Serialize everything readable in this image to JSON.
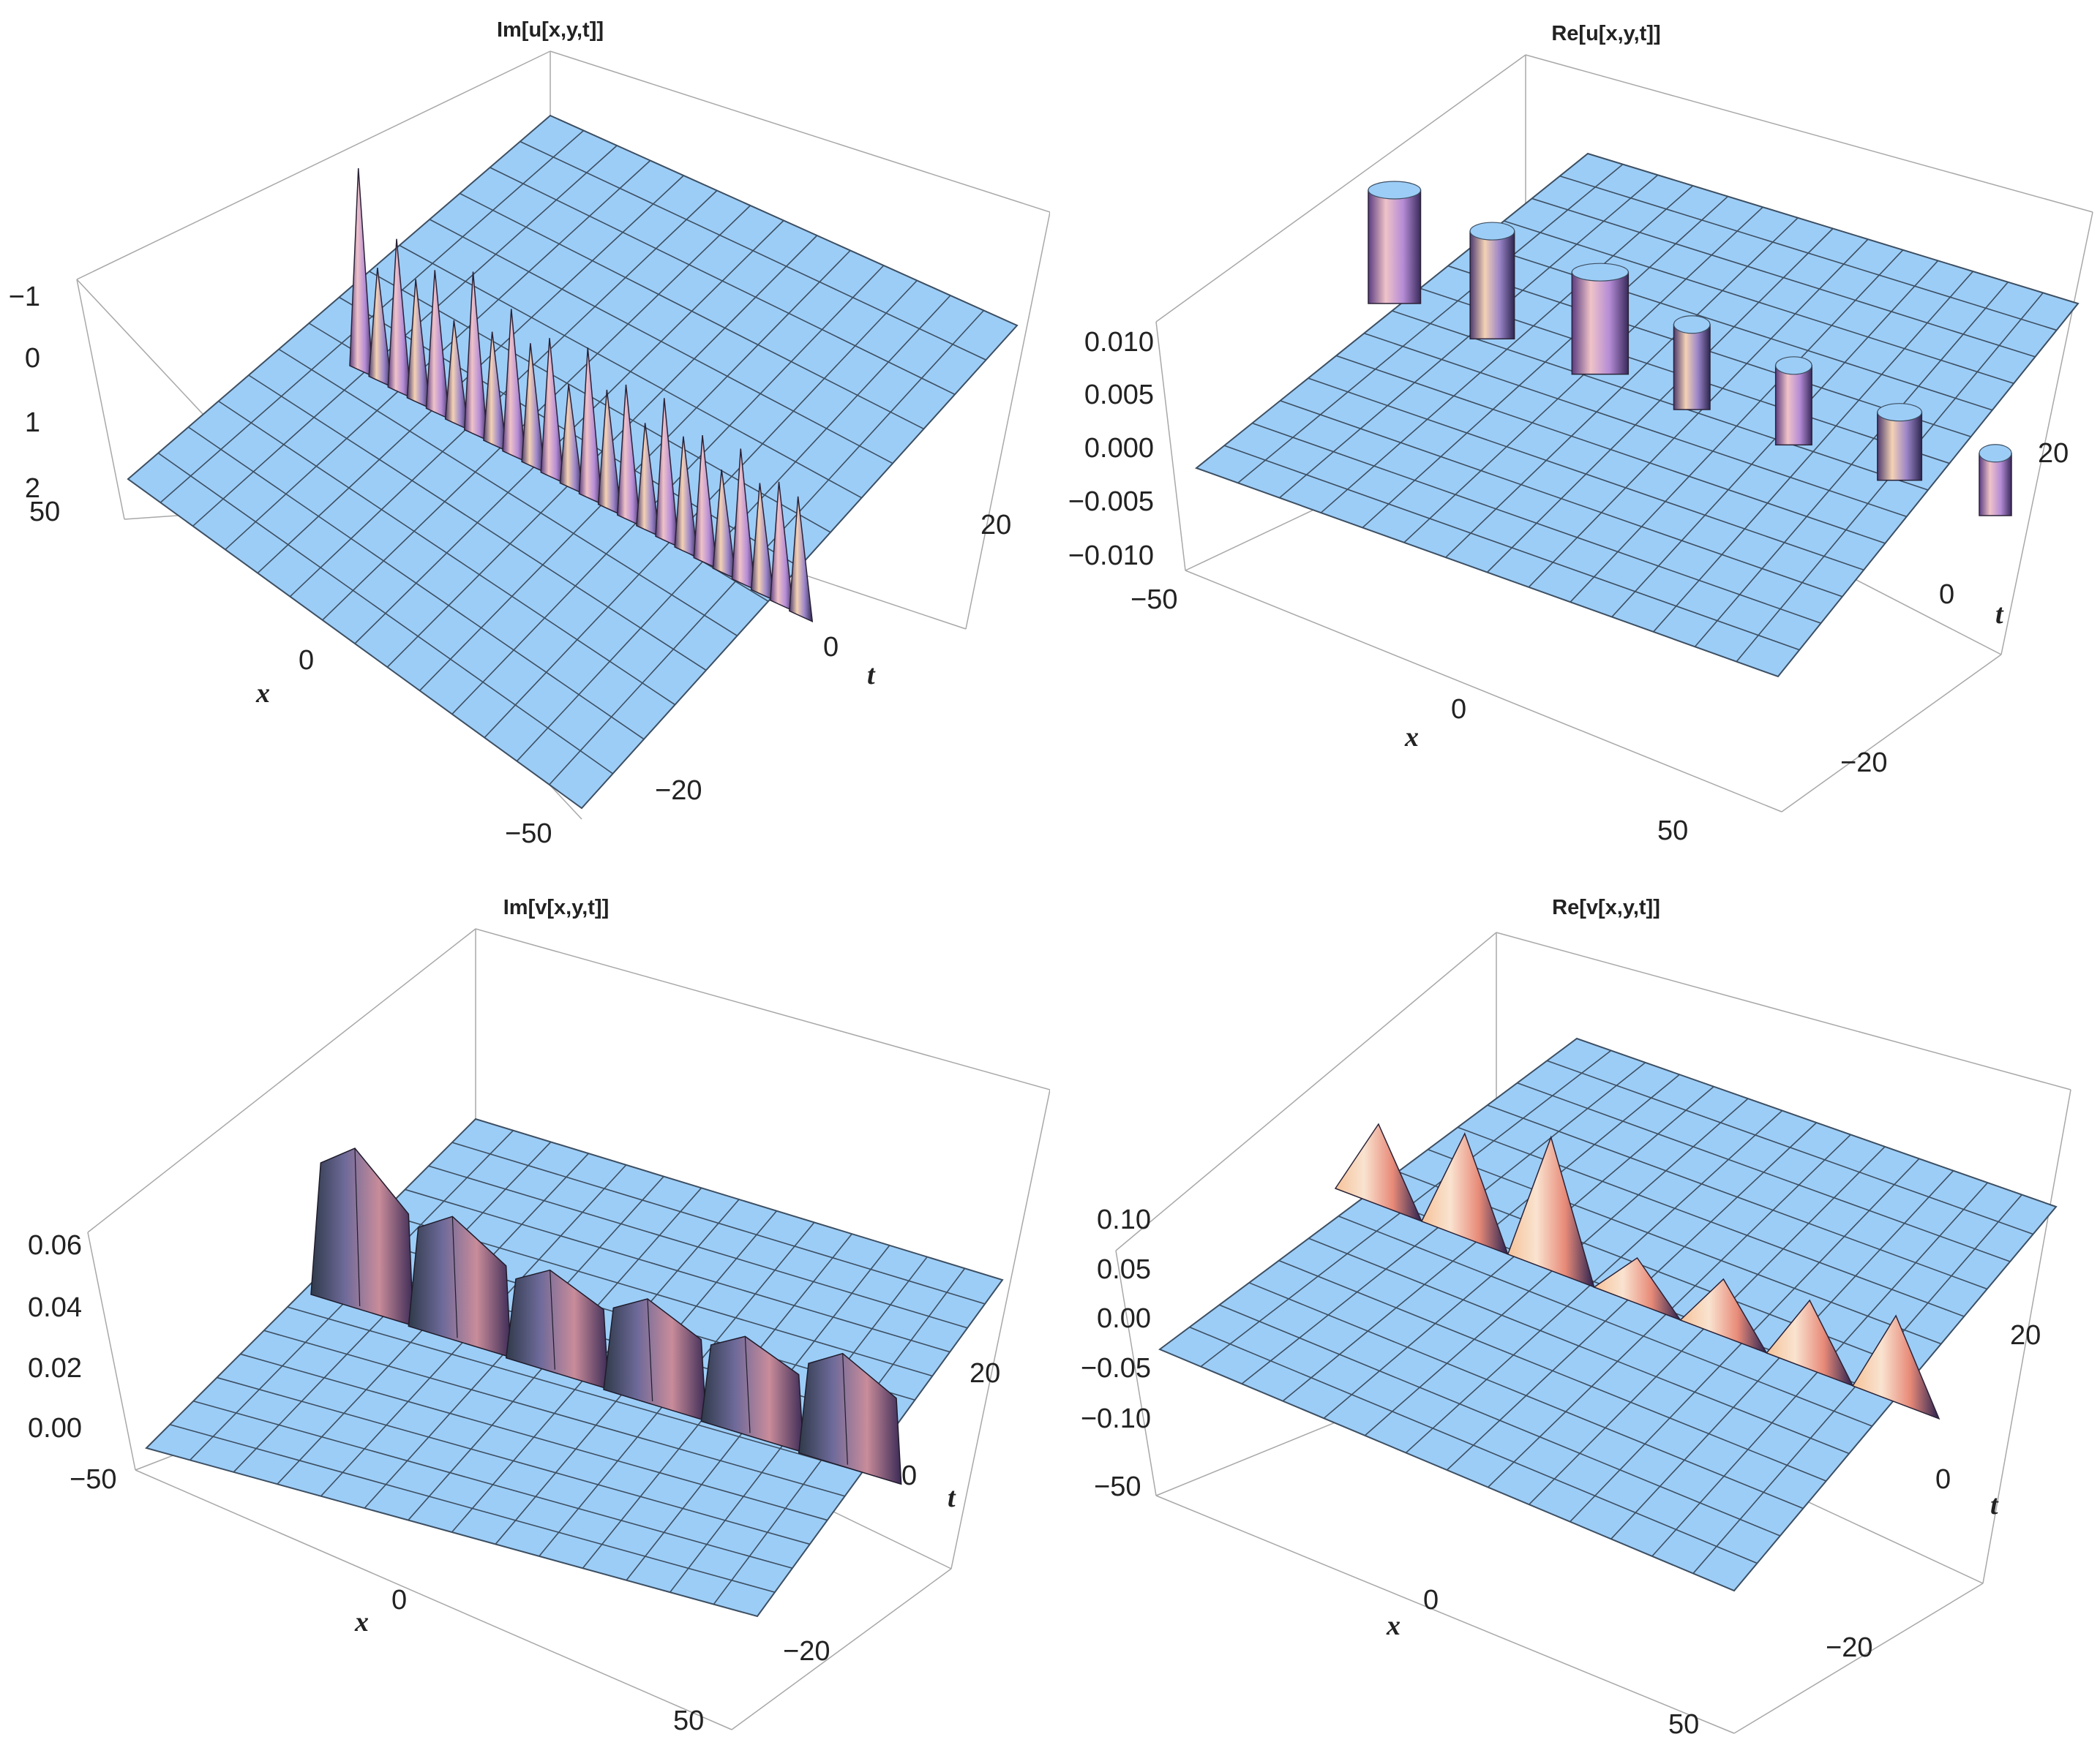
{
  "figure": {
    "description": "Four 3D surface plots of the real and imaginary parts of u and v",
    "colors": {
      "surface": "#9ccdf7",
      "mesh": "#3d4f62",
      "box": "#a8a8a8",
      "text": "#222222"
    }
  },
  "chart_data": [
    {
      "id": "im-u",
      "type": "surface3d",
      "title": "Im[u[x,y,t]]",
      "xlabel": "x",
      "ylabel": "t",
      "zlabel": "",
      "xlim": [
        -50,
        50
      ],
      "tlim": [
        -30,
        30
      ],
      "zlim": [
        -1.3,
        2.1
      ],
      "z_reversed": true,
      "x_ticks": [
        "50",
        "0",
        "−50"
      ],
      "t_ticks": [
        "20",
        "0",
        "−20"
      ],
      "z_ticks": [
        "−1",
        "0",
        "1",
        "2"
      ],
      "ridge": {
        "t": 8,
        "spikes": 24,
        "approx_peak_z": -1.1,
        "baseline_z": 2
      }
    },
    {
      "id": "re-u",
      "type": "surface3d",
      "title": "Re[u[x,y,t]]",
      "xlabel": "x",
      "ylabel": "t",
      "zlabel": "",
      "xlim": [
        -50,
        50
      ],
      "tlim": [
        -30,
        30
      ],
      "zlim": [
        -0.012,
        0.012
      ],
      "x_ticks": [
        "−50",
        "0",
        "50"
      ],
      "t_ticks": [
        "20",
        "0",
        "−20"
      ],
      "z_ticks": [
        "0.010",
        "0.005",
        "0.000",
        "−0.005",
        "−0.010"
      ],
      "ridge": {
        "t": 8,
        "clipped_blocks": 7,
        "approx_peak_z": 0.012,
        "baseline_z": 0
      }
    },
    {
      "id": "im-v",
      "type": "surface3d",
      "title": "Im[v[x,y,t]]",
      "xlabel": "x",
      "ylabel": "t",
      "zlabel": "",
      "xlim": [
        -50,
        50
      ],
      "tlim": [
        -30,
        30
      ],
      "zlim": [
        0,
        0.065
      ],
      "x_ticks": [
        "−50",
        "0",
        "50"
      ],
      "t_ticks": [
        "20",
        "0",
        "−20"
      ],
      "z_ticks": [
        "0.06",
        "0.04",
        "0.02",
        "0.00"
      ],
      "ridge": {
        "t": 8,
        "peaks": 6,
        "approx_peak_z": 0.06,
        "baseline_z": 0
      }
    },
    {
      "id": "re-v",
      "type": "surface3d",
      "title": "Re[v[x,y,t]]",
      "xlabel": "x",
      "ylabel": "t",
      "zlabel": "",
      "xlim": [
        -50,
        50
      ],
      "tlim": [
        -30,
        30
      ],
      "zlim": [
        -0.12,
        0.12
      ],
      "x_ticks": [
        "−50",
        "0",
        "50"
      ],
      "t_ticks": [
        "20",
        "0",
        "−20"
      ],
      "z_ticks": [
        "0.10",
        "0.05",
        "0.00",
        "−0.05",
        "−0.10"
      ],
      "ridge": {
        "t": 8,
        "peaks": 7,
        "approx_peak_z": 0.11,
        "baseline_z": 0
      }
    }
  ]
}
